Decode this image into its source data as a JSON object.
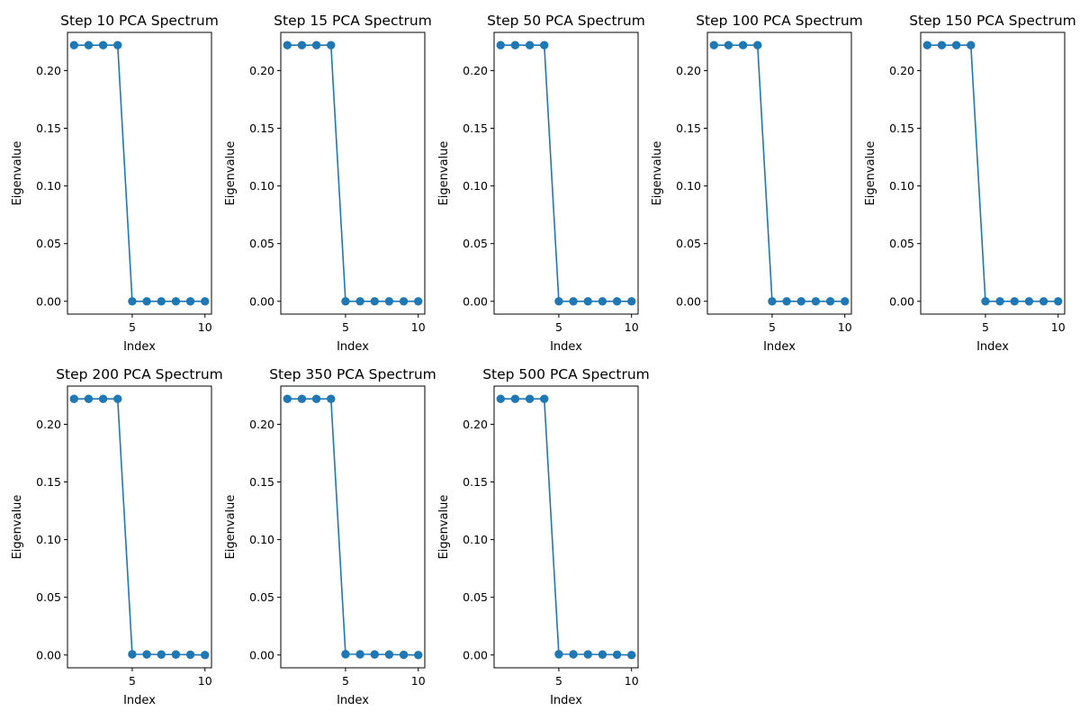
{
  "figure": {
    "line_color": "#1f77b4"
  },
  "chart_data": [
    {
      "type": "line",
      "title": "Step 10 PCA Spectrum",
      "xlabel": "Index",
      "ylabel": "Eigenvalue",
      "marker": "circle",
      "x": [
        1,
        2,
        3,
        4,
        5,
        6,
        7,
        8,
        9,
        10
      ],
      "series": [
        {
          "values": [
            0.222,
            0.222,
            0.222,
            0.222,
            0.0,
            0.0,
            0.0,
            0.0,
            0.0,
            0.0
          ]
        }
      ],
      "xlim": [
        0.55,
        10.45
      ],
      "ylim": [
        -0.0111,
        0.2331
      ],
      "xticks": [
        "5",
        "10"
      ],
      "yticks": [
        "0.00",
        "0.05",
        "0.10",
        "0.15",
        "0.20"
      ],
      "grid": false
    },
    {
      "type": "line",
      "title": "Step 15 PCA Spectrum",
      "xlabel": "Index",
      "ylabel": "Eigenvalue",
      "marker": "circle",
      "x": [
        1,
        2,
        3,
        4,
        5,
        6,
        7,
        8,
        9,
        10
      ],
      "series": [
        {
          "values": [
            0.222,
            0.222,
            0.222,
            0.222,
            0.0,
            0.0,
            0.0,
            0.0,
            0.0,
            0.0
          ]
        }
      ],
      "xlim": [
        0.55,
        10.45
      ],
      "ylim": [
        -0.0111,
        0.2331
      ],
      "xticks": [
        "5",
        "10"
      ],
      "yticks": [
        "0.00",
        "0.05",
        "0.10",
        "0.15",
        "0.20"
      ],
      "grid": false
    },
    {
      "type": "line",
      "title": "Step 50 PCA Spectrum",
      "xlabel": "Index",
      "ylabel": "Eigenvalue",
      "marker": "circle",
      "x": [
        1,
        2,
        3,
        4,
        5,
        6,
        7,
        8,
        9,
        10
      ],
      "series": [
        {
          "values": [
            0.222,
            0.222,
            0.222,
            0.222,
            0.0,
            0.0,
            0.0,
            0.0,
            0.0,
            0.0
          ]
        }
      ],
      "xlim": [
        0.55,
        10.45
      ],
      "ylim": [
        -0.0111,
        0.2331
      ],
      "xticks": [
        "5",
        "10"
      ],
      "yticks": [
        "0.00",
        "0.05",
        "0.10",
        "0.15",
        "0.20"
      ],
      "grid": false
    },
    {
      "type": "line",
      "title": "Step 100 PCA Spectrum",
      "xlabel": "Index",
      "ylabel": "Eigenvalue",
      "marker": "circle",
      "x": [
        1,
        2,
        3,
        4,
        5,
        6,
        7,
        8,
        9,
        10
      ],
      "series": [
        {
          "values": [
            0.222,
            0.222,
            0.222,
            0.222,
            0.0,
            0.0,
            0.0,
            0.0,
            0.0,
            0.0
          ]
        }
      ],
      "xlim": [
        0.55,
        10.45
      ],
      "ylim": [
        -0.0111,
        0.2331
      ],
      "xticks": [
        "5",
        "10"
      ],
      "yticks": [
        "0.00",
        "0.05",
        "0.10",
        "0.15",
        "0.20"
      ],
      "grid": false
    },
    {
      "type": "line",
      "title": "Step 150 PCA Spectrum",
      "xlabel": "Index",
      "ylabel": "Eigenvalue",
      "marker": "circle",
      "x": [
        1,
        2,
        3,
        4,
        5,
        6,
        7,
        8,
        9,
        10
      ],
      "series": [
        {
          "values": [
            0.222,
            0.222,
            0.222,
            0.222,
            0.0,
            0.0,
            0.0,
            0.0,
            0.0,
            0.0
          ]
        }
      ],
      "xlim": [
        0.55,
        10.45
      ],
      "ylim": [
        -0.0111,
        0.2331
      ],
      "xticks": [
        "5",
        "10"
      ],
      "yticks": [
        "0.00",
        "0.05",
        "0.10",
        "0.15",
        "0.20"
      ],
      "grid": false
    },
    {
      "type": "line",
      "title": "Step 200 PCA Spectrum",
      "xlabel": "Index",
      "ylabel": "Eigenvalue",
      "marker": "circle",
      "x": [
        1,
        2,
        3,
        4,
        5,
        6,
        7,
        8,
        9,
        10
      ],
      "series": [
        {
          "values": [
            0.222,
            0.222,
            0.222,
            0.222,
            0.0006,
            0.0005,
            0.0004,
            0.0004,
            0.0003,
            0.0
          ]
        }
      ],
      "xlim": [
        0.55,
        10.45
      ],
      "ylim": [
        -0.0111,
        0.2331
      ],
      "xticks": [
        "5",
        "10"
      ],
      "yticks": [
        "0.00",
        "0.05",
        "0.10",
        "0.15",
        "0.20"
      ],
      "grid": false
    },
    {
      "type": "line",
      "title": "Step 350 PCA Spectrum",
      "xlabel": "Index",
      "ylabel": "Eigenvalue",
      "marker": "circle",
      "x": [
        1,
        2,
        3,
        4,
        5,
        6,
        7,
        8,
        9,
        10
      ],
      "series": [
        {
          "values": [
            0.222,
            0.222,
            0.222,
            0.222,
            0.0007,
            0.0006,
            0.0005,
            0.0004,
            0.0002,
            0.0
          ]
        }
      ],
      "xlim": [
        0.55,
        10.45
      ],
      "ylim": [
        -0.0111,
        0.2331
      ],
      "xticks": [
        "5",
        "10"
      ],
      "yticks": [
        "0.00",
        "0.05",
        "0.10",
        "0.15",
        "0.20"
      ],
      "grid": false
    },
    {
      "type": "line",
      "title": "Step 500 PCA Spectrum",
      "xlabel": "Index",
      "ylabel": "Eigenvalue",
      "marker": "circle",
      "x": [
        1,
        2,
        3,
        4,
        5,
        6,
        7,
        8,
        9,
        10
      ],
      "series": [
        {
          "values": [
            0.222,
            0.222,
            0.222,
            0.222,
            0.0007,
            0.0006,
            0.0005,
            0.0004,
            0.0003,
            0.0
          ]
        }
      ],
      "xlim": [
        0.55,
        10.45
      ],
      "ylim": [
        -0.0111,
        0.2331
      ],
      "xticks": [
        "5",
        "10"
      ],
      "yticks": [
        "0.00",
        "0.05",
        "0.10",
        "0.15",
        "0.20"
      ],
      "grid": false
    }
  ]
}
